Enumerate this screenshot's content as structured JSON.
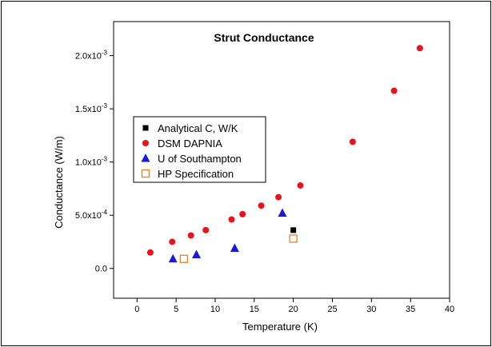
{
  "chart_data": {
    "type": "scatter",
    "title": "Strut Conductance",
    "xlabel": "Temperature (K)",
    "ylabel": "Conductance (W/m)",
    "xlim": [
      -3,
      40
    ],
    "ylim": [
      -0.00028,
      0.00232
    ],
    "xticks": [
      0,
      5,
      10,
      15,
      20,
      25,
      30,
      35,
      40
    ],
    "xtick_labels": [
      "0",
      "5",
      "10",
      "15",
      "20",
      "25",
      "30",
      "35",
      "40"
    ],
    "yticks": [
      0.0,
      0.0005,
      0.001,
      0.0015,
      0.002
    ],
    "ytick_labels": [
      {
        "base": "0.0",
        "exp": ""
      },
      {
        "base": "5.0x10",
        "exp": "-4"
      },
      {
        "base": "1.0x10",
        "exp": "-3"
      },
      {
        "base": "1.5x10",
        "exp": "-3"
      },
      {
        "base": "2.0x10",
        "exp": "-3"
      }
    ],
    "grid": false,
    "legend_position": "left",
    "series": [
      {
        "name": "Analytical C, W/K",
        "marker": "square",
        "color": "#000000",
        "filled": true,
        "points": [
          {
            "x": 20,
            "y": 0.00036
          }
        ]
      },
      {
        "name": "DSM DAPNIA",
        "marker": "circle",
        "color": "#e8141b",
        "filled": true,
        "points": [
          {
            "x": 1.7,
            "y": 0.00015
          },
          {
            "x": 4.5,
            "y": 0.00025
          },
          {
            "x": 6.9,
            "y": 0.00031
          },
          {
            "x": 8.8,
            "y": 0.00036
          },
          {
            "x": 12.1,
            "y": 0.00046
          },
          {
            "x": 13.5,
            "y": 0.00051
          },
          {
            "x": 15.9,
            "y": 0.00059
          },
          {
            "x": 18.1,
            "y": 0.00067
          },
          {
            "x": 20.9,
            "y": 0.00078
          },
          {
            "x": 27.6,
            "y": 0.00119
          },
          {
            "x": 32.9,
            "y": 0.00167
          },
          {
            "x": 36.2,
            "y": 0.00207
          }
        ]
      },
      {
        "name": "U of Southampton",
        "marker": "triangle",
        "color": "#1a1adb",
        "filled": true,
        "points": [
          {
            "x": 4.6,
            "y": 9e-05
          },
          {
            "x": 7.6,
            "y": 0.00013
          },
          {
            "x": 12.5,
            "y": 0.00019
          },
          {
            "x": 18.6,
            "y": 0.00052
          }
        ]
      },
      {
        "name": "HP Specification",
        "marker": "square",
        "color": "#f07e1e",
        "filled": false,
        "points": [
          {
            "x": 6.0,
            "y": 9e-05
          },
          {
            "x": 20.0,
            "y": 0.00028
          }
        ]
      }
    ]
  }
}
